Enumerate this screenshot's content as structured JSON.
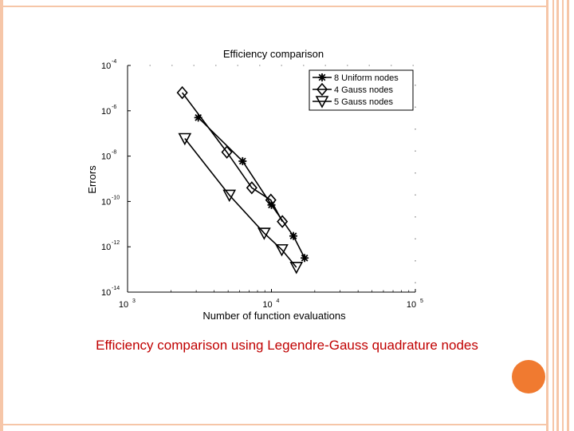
{
  "caption": "Efficiency comparison using Legendre-Gauss quadrature nodes",
  "colors": {
    "accent_bars": "#f6c6a8",
    "circle": "#f07a30",
    "caption": "#c00000"
  },
  "chart_data": {
    "type": "line",
    "title": "Efficiency comparison",
    "xlabel": "Number of function evaluations",
    "ylabel": "Errors",
    "xscale": "log",
    "yscale": "log",
    "xlim": [
      1000,
      100000
    ],
    "ylim": [
      1e-14,
      0.0001
    ],
    "x_ticks": [
      {
        "value": 1000,
        "base": "10",
        "exp": "3"
      },
      {
        "value": 10000,
        "base": "10",
        "exp": "4"
      },
      {
        "value": 100000,
        "base": "10",
        "exp": "5"
      }
    ],
    "y_ticks": [
      {
        "value": 0.0001,
        "base": "10",
        "exp": "-4"
      },
      {
        "value": 1e-06,
        "base": "10",
        "exp": "-6"
      },
      {
        "value": 1e-08,
        "base": "10",
        "exp": "-8"
      },
      {
        "value": 1e-10,
        "base": "10",
        "exp": "-10"
      },
      {
        "value": 1e-12,
        "base": "10",
        "exp": "-12"
      },
      {
        "value": 1e-14,
        "base": "10",
        "exp": "-14"
      }
    ],
    "legend_position": "top-right",
    "series": [
      {
        "name": "8 Uniform nodes",
        "marker": "asterisk",
        "points": [
          [
            3100,
            5e-07
          ],
          [
            6300,
            6e-09
          ],
          [
            10000,
            7e-11
          ],
          [
            14200,
            3e-12
          ],
          [
            17000,
            3.2e-13
          ]
        ]
      },
      {
        "name": "4 Gauss nodes",
        "marker": "diamond",
        "points": [
          [
            2400,
            6.3e-06
          ],
          [
            4900,
            1.5e-08
          ],
          [
            7300,
            4e-10
          ],
          [
            9900,
            1.15e-10
          ],
          [
            11900,
            1.3e-11
          ]
        ]
      },
      {
        "name": "5 Gauss nodes",
        "marker": "triangle-down",
        "points": [
          [
            2500,
            6e-08
          ],
          [
            5100,
            1.9e-10
          ],
          [
            8900,
            4e-12
          ],
          [
            11800,
            7.5e-13
          ],
          [
            14900,
            1.25e-13
          ]
        ]
      }
    ]
  }
}
